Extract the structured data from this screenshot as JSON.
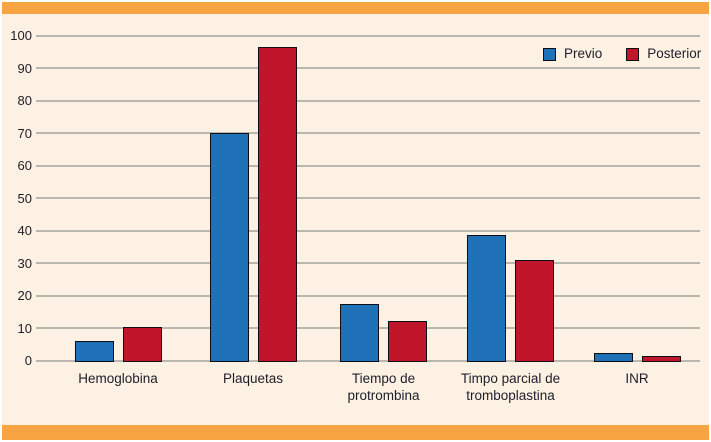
{
  "figure": {
    "background_color": "#FCF1E2",
    "band_color": "#F7A443",
    "grid_color": "#BBB7B0",
    "text_color": "#1E1E2A",
    "bar_outline_color": "#0E0E14"
  },
  "legend": {
    "items": [
      {
        "label": "Previo",
        "color": "#1F72B8"
      },
      {
        "label": "Posterior",
        "color": "#C1152B"
      }
    ]
  },
  "chart_data": {
    "type": "bar",
    "title": "",
    "xlabel": "",
    "ylabel": "",
    "categories": [
      "Hemoglobina",
      "Plaquetas",
      "Tiempo de protrombina",
      "Timpo parcial de tromboplastina",
      "INR"
    ],
    "category_lines": [
      [
        "Hemoglobina"
      ],
      [
        "Plaquetas"
      ],
      [
        "Tiempo de",
        "protrombina"
      ],
      [
        "Timpo parcial de",
        "tromboplastina"
      ],
      [
        "INR"
      ]
    ],
    "series": [
      {
        "name": "Previo",
        "color": "#1F72B8",
        "values": [
          6,
          70,
          17.5,
          38.5,
          2.3
        ]
      },
      {
        "name": "Posterior",
        "color": "#C1152B",
        "values": [
          10.3,
          96.5,
          12.2,
          30.8,
          1.5
        ]
      }
    ],
    "ylim": [
      0,
      100
    ],
    "yticks": [
      0,
      10,
      20,
      30,
      40,
      50,
      60,
      70,
      80,
      90,
      100
    ],
    "grid": true,
    "legend_position": "top-right"
  }
}
